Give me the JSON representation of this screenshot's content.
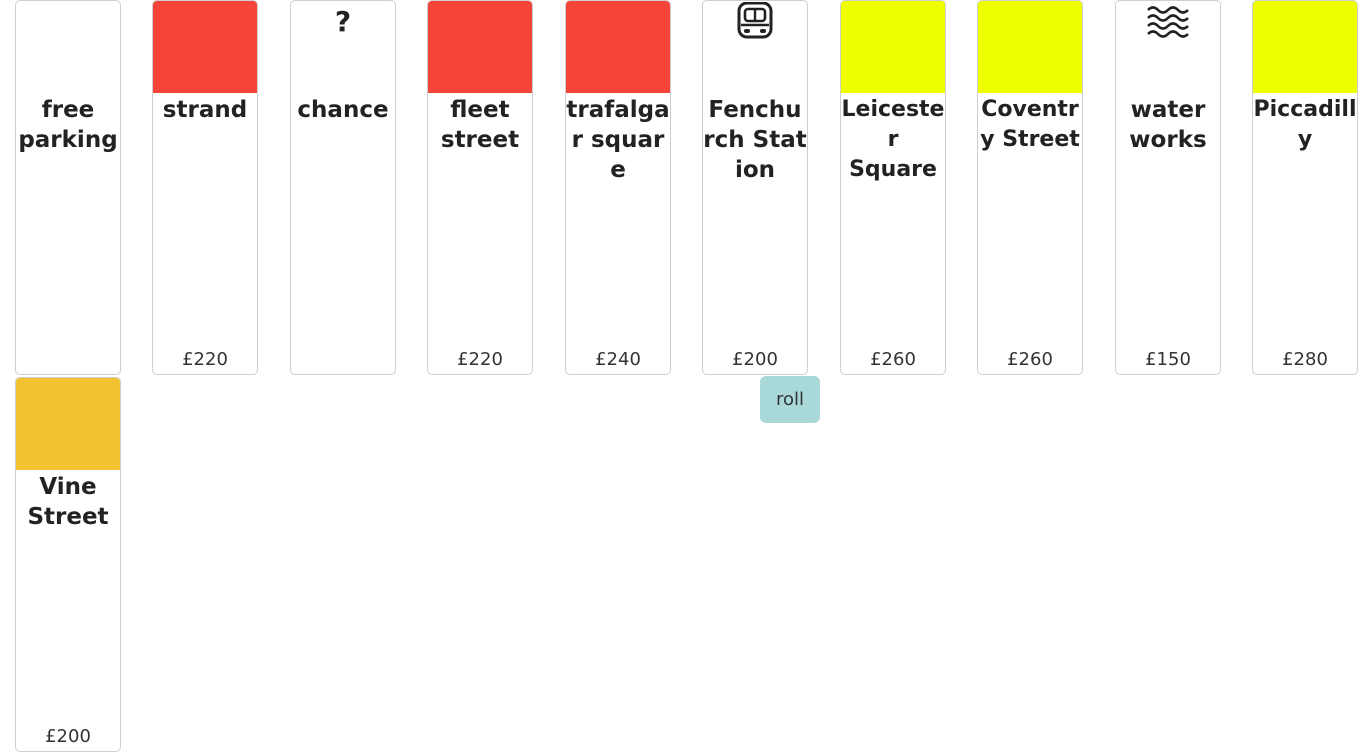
{
  "tiles": [
    {
      "name": "free parking",
      "price": "",
      "icon": "",
      "band_color": ""
    },
    {
      "name": "strand",
      "price": "£220",
      "icon": "",
      "band_color": "#f5443a"
    },
    {
      "name": "chance",
      "price": "",
      "icon": "question-mark",
      "band_color": ""
    },
    {
      "name": "fleet street",
      "price": "£220",
      "icon": "",
      "band_color": "#f5443a"
    },
    {
      "name": "trafalgar square",
      "price": "£240",
      "icon": "",
      "band_color": "#f5443a"
    },
    {
      "name": "Fenchurch Station",
      "price": "£200",
      "icon": "train-icon",
      "band_color": ""
    },
    {
      "name": "Leicester Square",
      "price": "£260",
      "icon": "",
      "band_color": "#eeff00"
    },
    {
      "name": "Coventry Street",
      "price": "£260",
      "icon": "",
      "band_color": "#eeff00"
    },
    {
      "name": "water works",
      "price": "£150",
      "icon": "water-icon",
      "band_color": ""
    },
    {
      "name": "Piccadilly",
      "price": "£280",
      "icon": "",
      "band_color": "#eeff00"
    },
    {
      "name": "Vine Street",
      "price": "£200",
      "icon": "",
      "band_color": "#f2c232"
    }
  ],
  "chance_symbol": "?",
  "roll_button": {
    "label": "roll",
    "color": "#a9d9d9"
  }
}
